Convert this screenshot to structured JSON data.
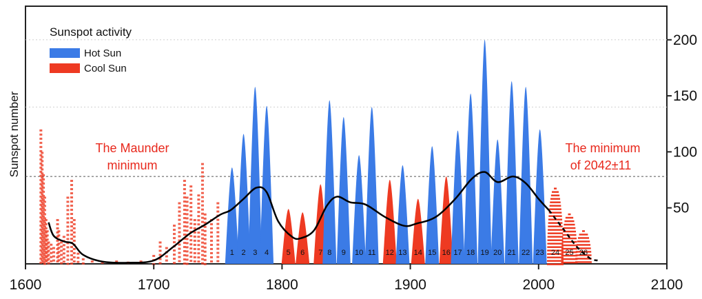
{
  "chart_data": {
    "type": "bar",
    "ylabel": "Sunspot number",
    "xlim": [
      1600,
      2100
    ],
    "ylim": [
      0,
      230
    ],
    "x_ticks": [
      1600,
      1700,
      1800,
      1900,
      2000,
      2100
    ],
    "y_ticks": [
      50,
      100,
      150,
      200
    ],
    "grid": "dotted horizontal lines at 140 and 200",
    "reference_line": 78,
    "legend": {
      "title": "Sunspot activity",
      "placement": "top-left",
      "entries": [
        {
          "label": "Hot Sun",
          "color": "#3b7be6"
        },
        {
          "label": "Cool Sun",
          "color": "#ee3a22"
        }
      ]
    },
    "annotations": [
      {
        "lines": [
          "The Maunder",
          "minimum"
        ],
        "color": "#e8281c"
      },
      {
        "lines": [
          "The minimum",
          "of 2042±11"
        ],
        "color": "#e8281c"
      }
    ],
    "series": [
      {
        "name": "Hot Sun",
        "color": "#3b7be6"
      },
      {
        "name": "Cool Sun",
        "color": "#ee3a22"
      }
    ],
    "cycles": [
      {
        "label": "1",
        "year": 1761,
        "peak": 86,
        "type": "hot"
      },
      {
        "label": "2",
        "year": 1770,
        "peak": 116,
        "type": "hot"
      },
      {
        "label": "3",
        "year": 1779,
        "peak": 158,
        "type": "hot"
      },
      {
        "label": "4",
        "year": 1788,
        "peak": 141,
        "type": "hot"
      },
      {
        "label": "5",
        "year": 1805,
        "peak": 49,
        "type": "cool"
      },
      {
        "label": "6",
        "year": 1816,
        "peak": 46,
        "type": "cool"
      },
      {
        "label": "7",
        "year": 1830,
        "peak": 71,
        "type": "cool"
      },
      {
        "label": "8",
        "year": 1837,
        "peak": 146,
        "type": "hot"
      },
      {
        "label": "9",
        "year": 1848,
        "peak": 131,
        "type": "hot"
      },
      {
        "label": "10",
        "year": 1860,
        "peak": 97,
        "type": "hot"
      },
      {
        "label": "11",
        "year": 1870,
        "peak": 140,
        "type": "hot"
      },
      {
        "label": "12",
        "year": 1884,
        "peak": 75,
        "type": "cool"
      },
      {
        "label": "13",
        "year": 1894,
        "peak": 88,
        "type": "hot"
      },
      {
        "label": "14",
        "year": 1906,
        "peak": 58,
        "type": "cool"
      },
      {
        "label": "15",
        "year": 1917,
        "peak": 105,
        "type": "hot"
      },
      {
        "label": "16",
        "year": 1928,
        "peak": 78,
        "type": "cool"
      },
      {
        "label": "17",
        "year": 1937,
        "peak": 119,
        "type": "hot"
      },
      {
        "label": "18",
        "year": 1947,
        "peak": 152,
        "type": "hot"
      },
      {
        "label": "19",
        "year": 1958,
        "peak": 200,
        "type": "hot"
      },
      {
        "label": "20",
        "year": 1968,
        "peak": 111,
        "type": "hot"
      },
      {
        "label": "21",
        "year": 1979,
        "peak": 163,
        "type": "hot"
      },
      {
        "label": "22",
        "year": 1990,
        "peak": 158,
        "type": "hot"
      },
      {
        "label": "23",
        "year": 2001,
        "peak": 120,
        "type": "hot"
      },
      {
        "label": "24",
        "year": 2013,
        "peak": 68,
        "type": "cool"
      },
      {
        "label": "25",
        "year": 2024,
        "peak": 45,
        "type": "cool"
      },
      {
        "label": "26",
        "year": 2035,
        "peak": 30,
        "type": "cool"
      }
    ],
    "maunder_scatter": [
      {
        "x": 1612,
        "y": 120
      },
      {
        "x": 1613,
        "y": 100
      },
      {
        "x": 1614,
        "y": 80
      },
      {
        "x": 1615,
        "y": 60
      },
      {
        "x": 1616,
        "y": 40
      },
      {
        "x": 1617,
        "y": 30
      },
      {
        "x": 1618,
        "y": 20
      },
      {
        "x": 1620,
        "y": 18
      },
      {
        "x": 1622,
        "y": 15
      },
      {
        "x": 1625,
        "y": 40
      },
      {
        "x": 1626,
        "y": 30
      },
      {
        "x": 1628,
        "y": 20
      },
      {
        "x": 1630,
        "y": 25
      },
      {
        "x": 1633,
        "y": 60
      },
      {
        "x": 1636,
        "y": 75
      },
      {
        "x": 1638,
        "y": 40
      },
      {
        "x": 1641,
        "y": 10
      },
      {
        "x": 1645,
        "y": 5
      },
      {
        "x": 1652,
        "y": 3
      },
      {
        "x": 1660,
        "y": 2
      },
      {
        "x": 1671,
        "y": 3
      },
      {
        "x": 1680,
        "y": 2
      },
      {
        "x": 1690,
        "y": 3
      },
      {
        "x": 1700,
        "y": 8
      },
      {
        "x": 1705,
        "y": 20
      },
      {
        "x": 1710,
        "y": 15
      },
      {
        "x": 1716,
        "y": 35
      },
      {
        "x": 1720,
        "y": 55
      },
      {
        "x": 1724,
        "y": 75
      },
      {
        "x": 1726,
        "y": 60
      },
      {
        "x": 1729,
        "y": 70
      },
      {
        "x": 1732,
        "y": 40
      },
      {
        "x": 1735,
        "y": 62
      },
      {
        "x": 1738,
        "y": 90
      },
      {
        "x": 1740,
        "y": 45
      },
      {
        "x": 1745,
        "y": 40
      },
      {
        "x": 1750,
        "y": 55
      }
    ],
    "smoothed_trend": {
      "x": [
        1618,
        1622,
        1630,
        1637,
        1645,
        1660,
        1680,
        1700,
        1715,
        1728,
        1740,
        1752,
        1760,
        1770,
        1780,
        1788,
        1797,
        1808,
        1815,
        1825,
        1835,
        1843,
        1853,
        1865,
        1880,
        1895,
        1905,
        1920,
        1935,
        1948,
        1958,
        1968,
        1980,
        1990,
        2000,
        2008
      ],
      "y": [
        37,
        25,
        20,
        18,
        8,
        2,
        1,
        3,
        15,
        27,
        35,
        44,
        48,
        58,
        68,
        64,
        38,
        24,
        23,
        30,
        52,
        60,
        55,
        53,
        42,
        34,
        36,
        42,
        58,
        76,
        82,
        73,
        78,
        72,
        58,
        48
      ]
    },
    "forecast_trend": {
      "x": [
        2008,
        2020,
        2030,
        2040,
        2046
      ],
      "y": [
        48,
        30,
        15,
        5,
        3
      ]
    }
  }
}
